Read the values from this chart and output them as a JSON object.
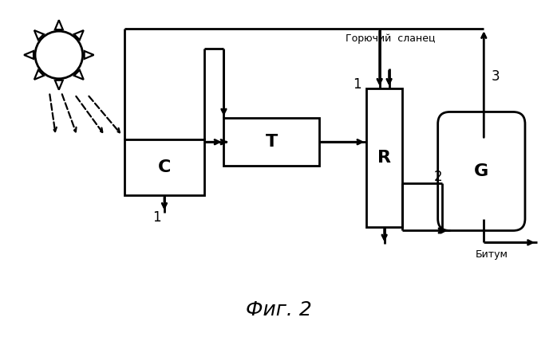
{
  "title": "Фиг. 2",
  "label_goryuchy": "Горючий  сланец",
  "label_bitum": "Битум",
  "fig_bg": "white",
  "lw": 1.6,
  "lw2": 2.0
}
